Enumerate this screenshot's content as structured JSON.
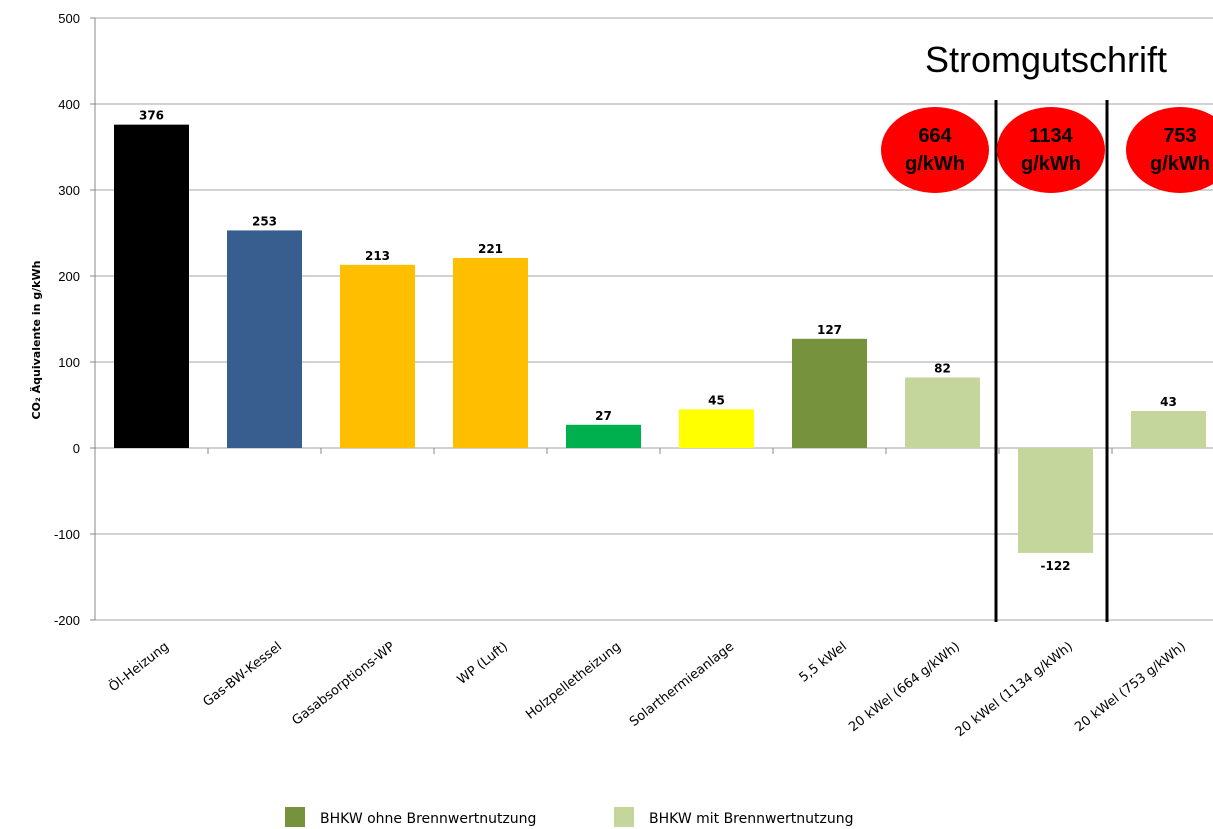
{
  "chart_data": {
    "type": "bar",
    "title": "",
    "xlabel": "",
    "ylabel": "CO₂ Äquivalente in g/kWh",
    "ylim": [
      -200,
      500
    ],
    "yticks": [
      -200,
      -100,
      0,
      100,
      200,
      300,
      400,
      500
    ],
    "grid": true,
    "categories": [
      "Öl-Heizung",
      "Gas-BW-Kessel",
      "Gasabsorptions-WP",
      "WP (Luft)",
      "Holzpelletheizung",
      "Solarthermieanlage",
      "5,5 kWel",
      "20 kWel (664 g/kWh)",
      "20 kWel (1134 g/kWh)",
      "20 kWel (753 g/kWh)"
    ],
    "values": [
      376,
      253,
      213,
      221,
      27,
      45,
      127,
      82,
      -122,
      43
    ],
    "bar_colors": [
      "#000000",
      "#375e8f",
      "#ffbf00",
      "#ffbf00",
      "#00b04f",
      "#ffff00",
      "#76923c",
      "#c4d69b",
      "#c4d69b",
      "#c4d69b"
    ],
    "legend": {
      "position": "bottom",
      "entries": [
        {
          "label": "BHKW ohne Brennwertnutzung",
          "color": "#76923c"
        },
        {
          "label": "BHKW mit Brennwertnutzung",
          "color": "#c4d69b"
        }
      ]
    },
    "annotations": {
      "section_title": "Stromgutschrift",
      "badge_color": "#ff0000",
      "badges": [
        {
          "value": "664",
          "unit": "g/kWh"
        },
        {
          "value": "1134",
          "unit": "g/kWh"
        },
        {
          "value": "753",
          "unit": "g/kWh"
        }
      ]
    }
  }
}
